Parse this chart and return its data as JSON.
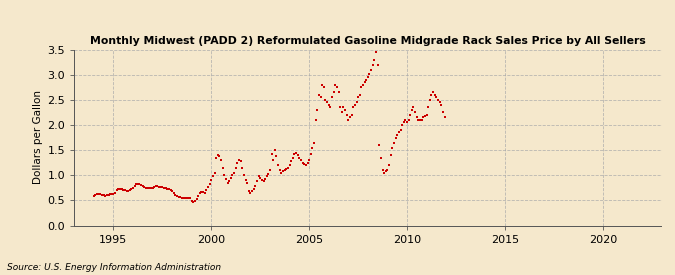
{
  "title": "Monthly Midwest (PADD 2) Reformulated Gasoline Midgrade Rack Sales Price by All Sellers",
  "ylabel": "Dollars per Gallon",
  "source": "Source: U.S. Energy Information Administration",
  "background_color": "#f5e8cc",
  "plot_bg_color": "#f5e8cc",
  "marker_color": "#cc0000",
  "xlim": [
    1993.0,
    2023.0
  ],
  "ylim": [
    0.0,
    3.5
  ],
  "yticks": [
    0.0,
    0.5,
    1.0,
    1.5,
    2.0,
    2.5,
    3.0,
    3.5
  ],
  "xticks": [
    1995,
    2000,
    2005,
    2010,
    2015,
    2020
  ],
  "data": {
    "dates": [
      1994.0,
      1994.08,
      1994.17,
      1994.25,
      1994.33,
      1994.42,
      1994.5,
      1994.58,
      1994.67,
      1994.75,
      1994.83,
      1994.92,
      1995.0,
      1995.08,
      1995.17,
      1995.25,
      1995.33,
      1995.42,
      1995.5,
      1995.58,
      1995.67,
      1995.75,
      1995.83,
      1995.92,
      1996.0,
      1996.08,
      1996.17,
      1996.25,
      1996.33,
      1996.42,
      1996.5,
      1996.58,
      1996.67,
      1996.75,
      1996.83,
      1996.92,
      1997.0,
      1997.08,
      1997.17,
      1997.25,
      1997.33,
      1997.42,
      1997.5,
      1997.58,
      1997.67,
      1997.75,
      1997.83,
      1997.92,
      1998.0,
      1998.08,
      1998.17,
      1998.25,
      1998.33,
      1998.42,
      1998.5,
      1998.58,
      1998.67,
      1998.75,
      1998.83,
      1998.92,
      1999.0,
      1999.08,
      1999.17,
      1999.25,
      1999.33,
      1999.42,
      1999.5,
      1999.58,
      1999.67,
      1999.75,
      1999.83,
      1999.92,
      2000.0,
      2000.08,
      2000.17,
      2000.25,
      2000.33,
      2000.42,
      2000.5,
      2000.58,
      2000.67,
      2000.75,
      2000.83,
      2000.92,
      2001.0,
      2001.08,
      2001.17,
      2001.25,
      2001.33,
      2001.42,
      2001.5,
      2001.58,
      2001.67,
      2001.75,
      2001.83,
      2001.92,
      2002.0,
      2002.08,
      2002.17,
      2002.25,
      2002.33,
      2002.42,
      2002.5,
      2002.58,
      2002.67,
      2002.75,
      2002.83,
      2002.92,
      2003.0,
      2003.08,
      2003.17,
      2003.25,
      2003.33,
      2003.42,
      2003.5,
      2003.58,
      2003.67,
      2003.75,
      2003.83,
      2003.92,
      2004.0,
      2004.08,
      2004.17,
      2004.25,
      2004.33,
      2004.42,
      2004.5,
      2004.58,
      2004.67,
      2004.75,
      2004.83,
      2004.92,
      2005.0,
      2005.08,
      2005.17,
      2005.25,
      2005.33,
      2005.42,
      2005.5,
      2005.58,
      2005.67,
      2005.75,
      2005.83,
      2005.92,
      2006.0,
      2006.08,
      2006.17,
      2006.25,
      2006.33,
      2006.42,
      2006.5,
      2006.58,
      2006.67,
      2006.75,
      2006.83,
      2006.92,
      2007.0,
      2007.08,
      2007.17,
      2007.25,
      2007.33,
      2007.42,
      2007.5,
      2007.58,
      2007.67,
      2007.75,
      2007.83,
      2007.92,
      2008.0,
      2008.08,
      2008.17,
      2008.25,
      2008.33,
      2008.42,
      2008.5,
      2008.58,
      2008.67,
      2008.75,
      2008.83,
      2008.92,
      2009.0,
      2009.08,
      2009.17,
      2009.25,
      2009.33,
      2009.42,
      2009.5,
      2009.58,
      2009.67,
      2009.75,
      2009.83,
      2009.92,
      2010.0,
      2010.08,
      2010.17,
      2010.25,
      2010.33,
      2010.42,
      2010.5,
      2010.58,
      2010.67,
      2010.75,
      2010.83,
      2010.92,
      2011.0,
      2011.08,
      2011.17,
      2011.25,
      2011.33,
      2011.42,
      2011.5,
      2011.58,
      2011.67,
      2011.75,
      2011.83,
      2011.92
    ],
    "values": [
      0.58,
      0.6,
      0.62,
      0.63,
      0.62,
      0.6,
      0.6,
      0.59,
      0.6,
      0.61,
      0.62,
      0.62,
      0.63,
      0.65,
      0.7,
      0.72,
      0.73,
      0.72,
      0.71,
      0.7,
      0.68,
      0.68,
      0.7,
      0.72,
      0.74,
      0.78,
      0.82,
      0.83,
      0.82,
      0.8,
      0.78,
      0.76,
      0.75,
      0.74,
      0.74,
      0.75,
      0.75,
      0.76,
      0.78,
      0.78,
      0.77,
      0.77,
      0.76,
      0.75,
      0.74,
      0.73,
      0.72,
      0.71,
      0.68,
      0.65,
      0.6,
      0.58,
      0.57,
      0.56,
      0.55,
      0.54,
      0.54,
      0.54,
      0.55,
      0.54,
      0.48,
      0.46,
      0.48,
      0.52,
      0.58,
      0.64,
      0.66,
      0.66,
      0.65,
      0.7,
      0.76,
      0.82,
      0.9,
      0.98,
      1.05,
      1.35,
      1.4,
      1.38,
      1.3,
      1.15,
      1.0,
      0.92,
      0.85,
      0.88,
      0.95,
      1.0,
      1.05,
      1.15,
      1.25,
      1.3,
      1.28,
      1.15,
      1.0,
      0.9,
      0.85,
      0.68,
      0.65,
      0.68,
      0.72,
      0.78,
      0.88,
      0.98,
      0.95,
      0.9,
      0.88,
      0.92,
      0.98,
      1.02,
      1.1,
      1.42,
      1.3,
      1.5,
      1.38,
      1.2,
      1.1,
      1.05,
      1.08,
      1.1,
      1.12,
      1.15,
      1.2,
      1.28,
      1.35,
      1.42,
      1.45,
      1.4,
      1.35,
      1.3,
      1.25,
      1.22,
      1.2,
      1.25,
      1.3,
      1.42,
      1.55,
      1.65,
      2.1,
      2.3,
      2.6,
      2.55,
      2.8,
      2.75,
      2.5,
      2.45,
      2.4,
      2.35,
      2.55,
      2.65,
      2.8,
      2.75,
      2.65,
      2.35,
      2.25,
      2.35,
      2.3,
      2.2,
      2.1,
      2.15,
      2.2,
      2.35,
      2.4,
      2.45,
      2.55,
      2.6,
      2.75,
      2.8,
      2.85,
      2.9,
      2.95,
      3.02,
      3.1,
      3.2,
      3.3,
      3.45,
      3.2,
      1.6,
      1.35,
      1.1,
      1.05,
      1.08,
      1.1,
      1.2,
      1.4,
      1.55,
      1.65,
      1.75,
      1.8,
      1.85,
      1.9,
      2.0,
      2.05,
      2.1,
      2.05,
      2.1,
      2.2,
      2.3,
      2.35,
      2.25,
      2.15,
      2.1,
      2.1,
      2.1,
      2.15,
      2.18,
      2.2,
      2.35,
      2.5,
      2.6,
      2.65,
      2.6,
      2.55,
      2.5,
      2.45,
      2.4,
      2.25,
      2.15
    ]
  }
}
